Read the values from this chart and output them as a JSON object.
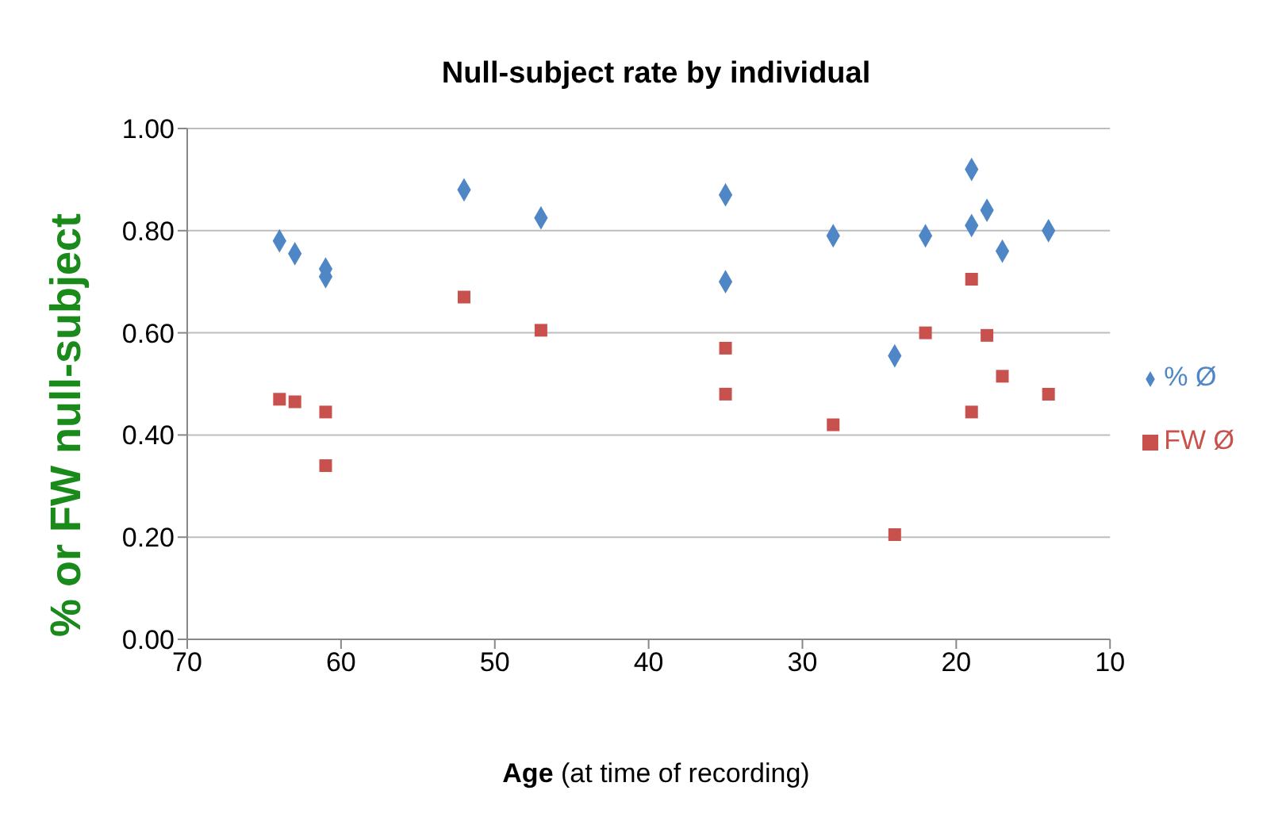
{
  "chart_data": {
    "type": "scatter",
    "title": "Null-subject rate by individual",
    "xlabel": "Age (at time of recording)",
    "ylabel": "% or FW null-subject",
    "xlim": [
      70,
      10
    ],
    "xticks": [
      70,
      60,
      50,
      40,
      30,
      20,
      10
    ],
    "ylim": [
      0,
      1
    ],
    "yticks": [
      {
        "value": 0,
        "label": "0.00"
      },
      {
        "value": 0.2,
        "label": "0.20"
      },
      {
        "value": 0.4,
        "label": "0.40"
      },
      {
        "value": 0.6,
        "label": "0.60"
      },
      {
        "value": 0.8,
        "label": "0.80"
      },
      {
        "value": 1,
        "label": "1.00"
      }
    ],
    "grid": "y",
    "legend": "right",
    "series": [
      {
        "name": "% Ø",
        "color": "#4f86c6",
        "marker": "diamond",
        "x": [
          64,
          63,
          61,
          61,
          52,
          47,
          35,
          35,
          28,
          24,
          22,
          19,
          19,
          18,
          17,
          14
        ],
        "values": [
          0.78,
          0.755,
          0.725,
          0.71,
          0.88,
          0.825,
          0.87,
          0.7,
          0.79,
          0.555,
          0.79,
          0.92,
          0.81,
          0.84,
          0.76,
          0.8
        ]
      },
      {
        "name": "FW Ø",
        "color": "#c9514d",
        "marker": "square",
        "x": [
          64,
          63,
          61,
          61,
          52,
          47,
          35,
          35,
          28,
          24,
          22,
          19,
          19,
          18,
          17,
          14
        ],
        "values": [
          0.47,
          0.465,
          0.445,
          0.34,
          0.67,
          0.605,
          0.57,
          0.48,
          0.42,
          0.205,
          0.6,
          0.705,
          0.445,
          0.595,
          0.515,
          0.48
        ]
      }
    ]
  }
}
